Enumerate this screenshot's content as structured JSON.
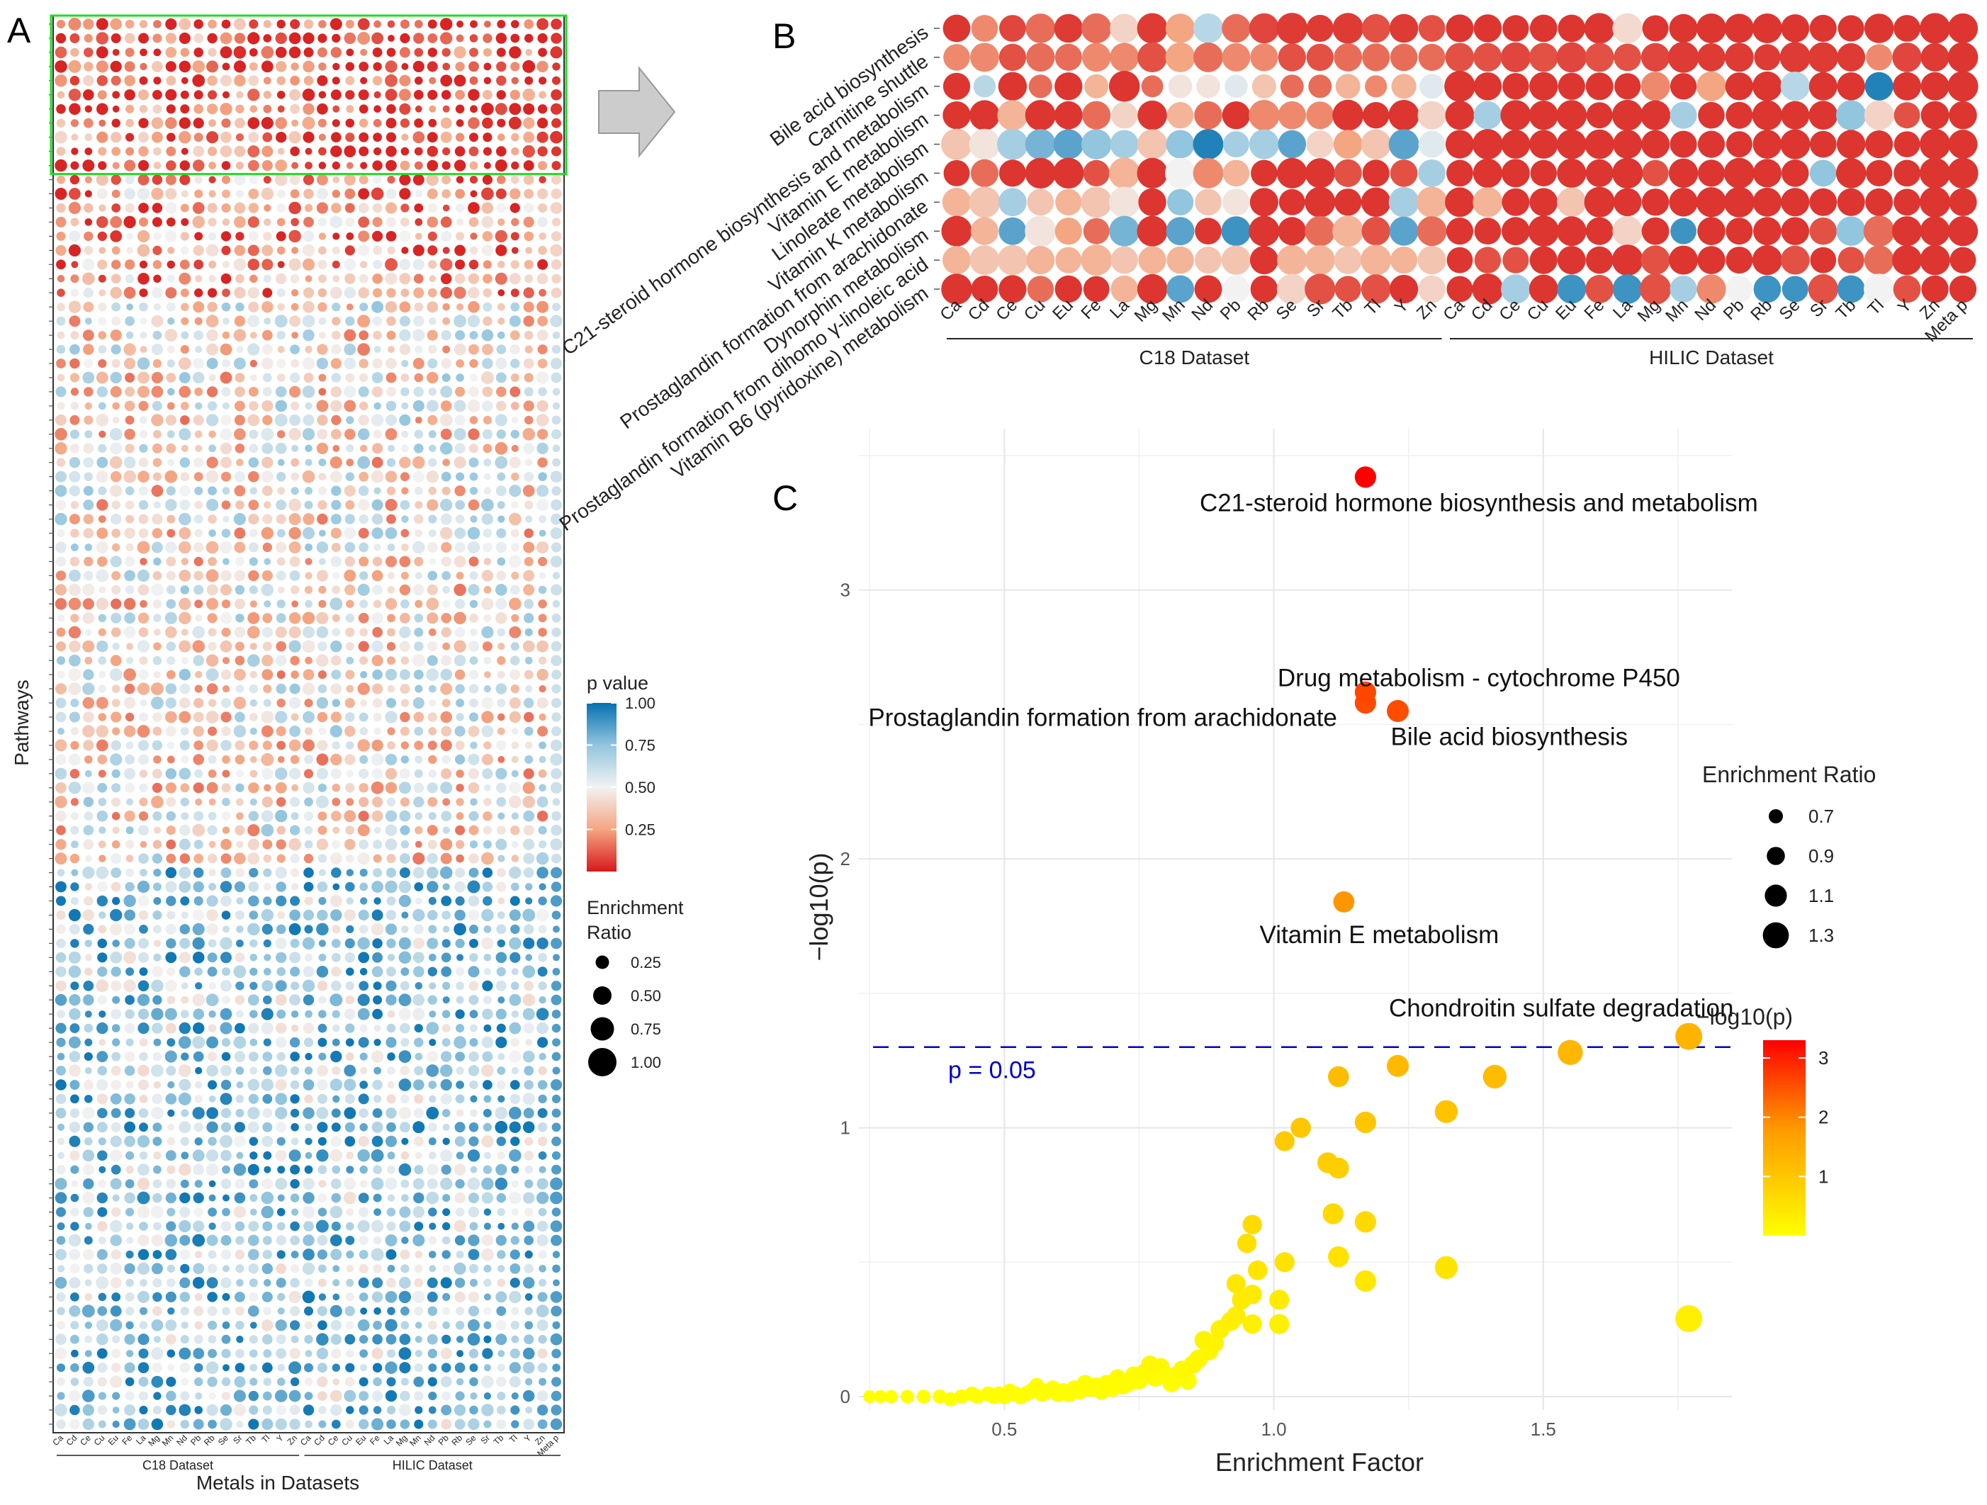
{
  "panel_labels": {
    "a": "A",
    "b": "B",
    "c": "C"
  },
  "colors": {
    "low": "#d7191c",
    "mid_low": "#f4a582",
    "mid": "#f2f2f2",
    "mid_high": "#92c5de",
    "high": "#0571b0",
    "highlight_box": "#22dd22",
    "arrow_fill": "#cccccc",
    "arrow_stroke": "#999999",
    "threshold_line": "#0000cc",
    "grid": "#e6e6e6",
    "ef_low": "#ffff00",
    "ef_mid": "#ff9900",
    "ef_high": "#ff0000"
  },
  "chart_data": [
    {
      "id": "A",
      "type": "dot-heatmap",
      "ylabel": "Pathways",
      "xlabel": "Metals in Datasets",
      "columns": [
        "Ca",
        "Cd",
        "Ce",
        "Cu",
        "Eu",
        "Fe",
        "La",
        "Mg",
        "Mn",
        "Nd",
        "Pb",
        "Rb",
        "Se",
        "Sr",
        "Tb",
        "Tl",
        "Y",
        "Zn",
        "Ca",
        "Cd",
        "Ce",
        "Cu",
        "Eu",
        "Fe",
        "La",
        "Mg",
        "Mn",
        "Nd",
        "Pb",
        "Rb",
        "Se",
        "Sr",
        "Tb",
        "Tl",
        "Y",
        "Zn",
        "Meta p"
      ],
      "groups": [
        {
          "name": "C18 Dataset",
          "from": 0,
          "to": 17
        },
        {
          "name": "HILIC Dataset",
          "from": 18,
          "to": 36
        }
      ],
      "n_rows": 100,
      "highlight_rows": [
        0,
        10
      ],
      "legend_p": {
        "title": "p value",
        "ticks": [
          "1.00",
          "0.75",
          "0.50",
          "0.25"
        ],
        "tick_values": [
          1.0,
          0.75,
          0.5,
          0.25
        ]
      },
      "legend_size": {
        "title_line1": "Enrichment",
        "title_line2": "Ratio",
        "labels": [
          "0.25",
          "0.50",
          "0.75",
          "1.00"
        ],
        "values": [
          0.25,
          0.5,
          0.75,
          1.0
        ]
      }
    },
    {
      "id": "B",
      "type": "dot-heatmap",
      "rows": [
        "Bile acid biosynthesis",
        "Carnitine shuttle",
        "C21-steroid hormone biosynthesis and metabolism",
        "Vitamin E metabolism",
        "Linoleate metabolism",
        "Vitamin K metabolism",
        "Prostaglandin formation from arachidonate",
        "Dynorphin metabolism",
        "Prostaglandin formation from dihomo γ-linoleic acid",
        "Vitamin B6 (pyridoxine) metabolism"
      ],
      "columns": [
        "Ca",
        "Cd",
        "Ce",
        "Cu",
        "Eu",
        "Fe",
        "La",
        "Mg",
        "Mn",
        "Nd",
        "Pb",
        "Rb",
        "Se",
        "Sr",
        "Tb",
        "Tl",
        "Y",
        "Zn",
        "Ca",
        "Cd",
        "Ce",
        "Cu",
        "Eu",
        "Fe",
        "La",
        "Mg",
        "Mn",
        "Nd",
        "Pb",
        "Rb",
        "Se",
        "Sr",
        "Tb",
        "Tl",
        "Y",
        "Zn",
        "Meta p"
      ],
      "groups": [
        {
          "name": "C18 Dataset",
          "from": 0,
          "to": 17
        },
        {
          "name": "HILIC Dataset",
          "from": 18,
          "to": 36
        }
      ],
      "p_values": [
        [
          0.05,
          0.2,
          0.08,
          0.15,
          0.06,
          0.15,
          0.4,
          0.06,
          0.25,
          0.65,
          0.15,
          0.08,
          0.06,
          0.06,
          0.06,
          0.1,
          0.06,
          0.1,
          0.05,
          0.05,
          0.05,
          0.05,
          0.05,
          0.05,
          0.42,
          0.05,
          0.05,
          0.05,
          0.05,
          0.05,
          0.05,
          0.05,
          0.05,
          0.05,
          0.05,
          0.05,
          0.05
        ],
        [
          0.2,
          0.2,
          0.1,
          0.15,
          0.15,
          0.2,
          0.2,
          0.1,
          0.25,
          0.15,
          0.2,
          0.2,
          0.1,
          0.1,
          0.15,
          0.15,
          0.15,
          0.15,
          0.1,
          0.1,
          0.08,
          0.1,
          0.08,
          0.1,
          0.1,
          0.08,
          0.06,
          0.06,
          0.06,
          0.06,
          0.06,
          0.06,
          0.06,
          0.2,
          0.08,
          0.06,
          0.05
        ],
        [
          0.05,
          0.65,
          0.05,
          0.15,
          0.05,
          0.3,
          0.05,
          0.15,
          0.45,
          0.45,
          0.55,
          0.35,
          0.15,
          0.15,
          0.3,
          0.2,
          0.3,
          0.55,
          0.05,
          0.05,
          0.05,
          0.05,
          0.05,
          0.05,
          0.05,
          0.2,
          0.05,
          0.25,
          0.05,
          0.05,
          0.65,
          0.05,
          0.05,
          0.95,
          0.05,
          0.05,
          0.05
        ],
        [
          0.05,
          0.05,
          0.3,
          0.05,
          0.05,
          0.15,
          0.4,
          0.05,
          0.3,
          0.15,
          0.05,
          0.2,
          0.2,
          0.2,
          0.05,
          0.05,
          0.05,
          0.4,
          0.05,
          0.7,
          0.05,
          0.05,
          0.05,
          0.05,
          0.05,
          0.05,
          0.7,
          0.05,
          0.05,
          0.05,
          0.05,
          0.05,
          0.75,
          0.4,
          0.1,
          0.05,
          0.05
        ],
        [
          0.35,
          0.45,
          0.7,
          0.8,
          0.85,
          0.75,
          0.7,
          0.35,
          0.75,
          0.95,
          0.7,
          0.7,
          0.85,
          0.4,
          0.25,
          0.35,
          0.85,
          0.55,
          0.05,
          0.05,
          0.05,
          0.05,
          0.05,
          0.05,
          0.05,
          0.05,
          0.05,
          0.05,
          0.05,
          0.05,
          0.05,
          0.05,
          0.05,
          0.05,
          0.05,
          0.05,
          0.05
        ],
        [
          0.05,
          0.15,
          0.05,
          0.05,
          0.05,
          0.1,
          0.3,
          0.05,
          0.5,
          0.2,
          0.3,
          0.05,
          0.05,
          0.05,
          0.1,
          0.05,
          0.1,
          0.7,
          0.05,
          0.05,
          0.05,
          0.05,
          0.05,
          0.05,
          0.05,
          0.1,
          0.05,
          0.05,
          0.05,
          0.05,
          0.05,
          0.75,
          0.05,
          0.05,
          0.05,
          0.05,
          0.05
        ],
        [
          0.3,
          0.35,
          0.7,
          0.35,
          0.3,
          0.35,
          0.45,
          0.05,
          0.75,
          0.35,
          0.45,
          0.05,
          0.05,
          0.05,
          0.05,
          0.05,
          0.7,
          0.3,
          0.05,
          0.3,
          0.05,
          0.05,
          0.35,
          0.05,
          0.05,
          0.05,
          0.05,
          0.05,
          0.05,
          0.05,
          0.05,
          0.05,
          0.05,
          0.05,
          0.05,
          0.05,
          0.05
        ],
        [
          0.05,
          0.3,
          0.85,
          0.45,
          0.25,
          0.15,
          0.8,
          0.05,
          0.85,
          0.05,
          0.9,
          0.05,
          0.05,
          0.15,
          0.3,
          0.1,
          0.85,
          0.15,
          0.05,
          0.05,
          0.05,
          0.05,
          0.05,
          0.05,
          0.4,
          0.05,
          0.9,
          0.05,
          0.05,
          0.05,
          0.05,
          0.1,
          0.75,
          0.15,
          0.05,
          0.05,
          0.05
        ],
        [
          0.3,
          0.35,
          0.35,
          0.3,
          0.3,
          0.3,
          0.35,
          0.3,
          0.3,
          0.35,
          0.35,
          0.05,
          0.3,
          0.3,
          0.35,
          0.3,
          0.3,
          0.35,
          0.05,
          0.1,
          0.1,
          0.05,
          0.05,
          0.05,
          0.05,
          0.1,
          0.05,
          0.05,
          0.05,
          0.05,
          0.1,
          0.05,
          0.1,
          0.15,
          0.05,
          0.05,
          0.05
        ],
        [
          0.05,
          0.05,
          0.05,
          0.15,
          0.05,
          0.05,
          0.3,
          0.05,
          0.85,
          0.05,
          0.5,
          0.05,
          0.4,
          0.1,
          0.1,
          0.1,
          0.05,
          0.4,
          0.05,
          0.05,
          0.7,
          0.05,
          0.9,
          0.1,
          0.9,
          0.1,
          0.7,
          0.2,
          0.5,
          0.9,
          0.9,
          0.1,
          0.9,
          0.5,
          0.1,
          0.05,
          0.05
        ]
      ]
    },
    {
      "id": "C",
      "type": "scatter",
      "xlabel": "Enrichment Factor",
      "ylabel": "−log10(p)",
      "xlim": [
        0.23,
        1.85
      ],
      "ylim": [
        -0.05,
        3.6
      ],
      "xticks": [
        0.5,
        1.0,
        1.5
      ],
      "xtick_labels": [
        "0.5",
        "1.0",
        "1.5"
      ],
      "yticks": [
        0,
        1,
        2,
        3
      ],
      "ytick_labels": [
        "0",
        "1",
        "2",
        "3"
      ],
      "threshold": {
        "y": 1.3,
        "label": "p = 0.05"
      },
      "legend_size": {
        "title": "Enrichment Ratio",
        "labels": [
          "0.7",
          "0.9",
          "1.1",
          "1.3"
        ],
        "values": [
          0.7,
          0.9,
          1.1,
          1.3
        ]
      },
      "legend_color": {
        "title": "−log10(p)",
        "labels": [
          "3",
          "2",
          "1"
        ],
        "values": [
          3,
          2,
          1
        ],
        "range": [
          0.0,
          3.3
        ]
      },
      "annotations": [
        {
          "text": "C21-steroid hormone biosynthesis and metabolism",
          "x": 1.17,
          "y": 3.42
        },
        {
          "text": "Drug metabolism - cytochrome P450",
          "x": 1.17,
          "y": 2.6
        },
        {
          "text": "Prostaglandin formation from arachidonate",
          "x": 1.17,
          "y": 2.6
        },
        {
          "text": "Bile acid biosynthesis",
          "x": 1.23,
          "y": 2.55
        },
        {
          "text": "Vitamin E metabolism",
          "x": 1.13,
          "y": 1.84
        },
        {
          "text": "Chondroitin sulfate degradation",
          "x": 1.77,
          "y": 1.34
        }
      ],
      "points": [
        {
          "x": 1.17,
          "y": 3.42
        },
        {
          "x": 1.17,
          "y": 2.62
        },
        {
          "x": 1.17,
          "y": 2.58
        },
        {
          "x": 1.23,
          "y": 2.55
        },
        {
          "x": 1.13,
          "y": 1.84
        },
        {
          "x": 1.77,
          "y": 1.34
        },
        {
          "x": 1.55,
          "y": 1.28
        },
        {
          "x": 1.41,
          "y": 1.19
        },
        {
          "x": 1.23,
          "y": 1.23
        },
        {
          "x": 1.12,
          "y": 1.19
        },
        {
          "x": 1.32,
          "y": 1.06
        },
        {
          "x": 1.17,
          "y": 1.02
        },
        {
          "x": 1.05,
          "y": 1.0
        },
        {
          "x": 1.02,
          "y": 0.95
        },
        {
          "x": 1.1,
          "y": 0.87
        },
        {
          "x": 1.12,
          "y": 0.85
        },
        {
          "x": 1.11,
          "y": 0.68
        },
        {
          "x": 1.17,
          "y": 0.65
        },
        {
          "x": 0.96,
          "y": 0.64
        },
        {
          "x": 0.95,
          "y": 0.57
        },
        {
          "x": 1.12,
          "y": 0.52
        },
        {
          "x": 1.02,
          "y": 0.5
        },
        {
          "x": 1.32,
          "y": 0.48
        },
        {
          "x": 1.17,
          "y": 0.43
        },
        {
          "x": 0.93,
          "y": 0.42
        },
        {
          "x": 0.96,
          "y": 0.38
        },
        {
          "x": 0.94,
          "y": 0.36
        },
        {
          "x": 1.01,
          "y": 0.36
        },
        {
          "x": 0.93,
          "y": 0.3
        },
        {
          "x": 0.92,
          "y": 0.28
        },
        {
          "x": 1.01,
          "y": 0.27
        },
        {
          "x": 0.96,
          "y": 0.27
        },
        {
          "x": 1.77,
          "y": 0.29
        },
        {
          "x": 0.89,
          "y": 0.2
        },
        {
          "x": 0.88,
          "y": 0.17
        },
        {
          "x": 0.86,
          "y": 0.14
        },
        {
          "x": 0.85,
          "y": 0.12
        },
        {
          "x": 0.83,
          "y": 0.1
        },
        {
          "x": 0.8,
          "y": 0.08
        },
        {
          "x": 0.78,
          "y": 0.07
        },
        {
          "x": 0.76,
          "y": 0.09
        },
        {
          "x": 0.75,
          "y": 0.06
        },
        {
          "x": 0.74,
          "y": 0.08
        },
        {
          "x": 0.73,
          "y": 0.05
        },
        {
          "x": 0.72,
          "y": 0.04
        },
        {
          "x": 0.71,
          "y": 0.07
        },
        {
          "x": 0.7,
          "y": 0.03
        },
        {
          "x": 0.69,
          "y": 0.05
        },
        {
          "x": 0.68,
          "y": 0.02
        },
        {
          "x": 0.67,
          "y": 0.04
        },
        {
          "x": 0.66,
          "y": 0.03
        },
        {
          "x": 0.65,
          "y": 0.05
        },
        {
          "x": 0.64,
          "y": 0.02
        },
        {
          "x": 0.63,
          "y": 0.03
        },
        {
          "x": 0.62,
          "y": 0.01
        },
        {
          "x": 0.61,
          "y": 0.02
        },
        {
          "x": 0.6,
          "y": 0.01
        },
        {
          "x": 0.59,
          "y": 0.03
        },
        {
          "x": 0.58,
          "y": 0.02
        },
        {
          "x": 0.57,
          "y": 0.01
        },
        {
          "x": 0.56,
          "y": 0.04
        },
        {
          "x": 0.55,
          "y": 0.02
        },
        {
          "x": 0.54,
          "y": 0.01
        },
        {
          "x": 0.53,
          "y": 0.0
        },
        {
          "x": 0.52,
          "y": 0.01
        },
        {
          "x": 0.51,
          "y": 0.02
        },
        {
          "x": 0.5,
          "y": 0.0
        },
        {
          "x": 0.49,
          "y": 0.01
        },
        {
          "x": 0.48,
          "y": 0.0
        },
        {
          "x": 0.47,
          "y": 0.01
        },
        {
          "x": 0.45,
          "y": 0.0
        },
        {
          "x": 0.44,
          "y": 0.01
        },
        {
          "x": 0.42,
          "y": 0.0
        },
        {
          "x": 0.4,
          "y": -0.01
        },
        {
          "x": 0.38,
          "y": 0.0
        },
        {
          "x": 0.35,
          "y": 0.0
        },
        {
          "x": 0.32,
          "y": 0.0
        },
        {
          "x": 0.29,
          "y": 0.0
        },
        {
          "x": 0.27,
          "y": 0.0
        },
        {
          "x": 0.25,
          "y": 0.0
        },
        {
          "x": 0.79,
          "y": 0.11
        },
        {
          "x": 0.77,
          "y": 0.12
        },
        {
          "x": 0.81,
          "y": 0.05
        },
        {
          "x": 0.82,
          "y": 0.08
        },
        {
          "x": 0.84,
          "y": 0.06
        },
        {
          "x": 0.87,
          "y": 0.21
        },
        {
          "x": 0.9,
          "y": 0.25
        },
        {
          "x": 0.97,
          "y": 0.47
        }
      ]
    }
  ]
}
